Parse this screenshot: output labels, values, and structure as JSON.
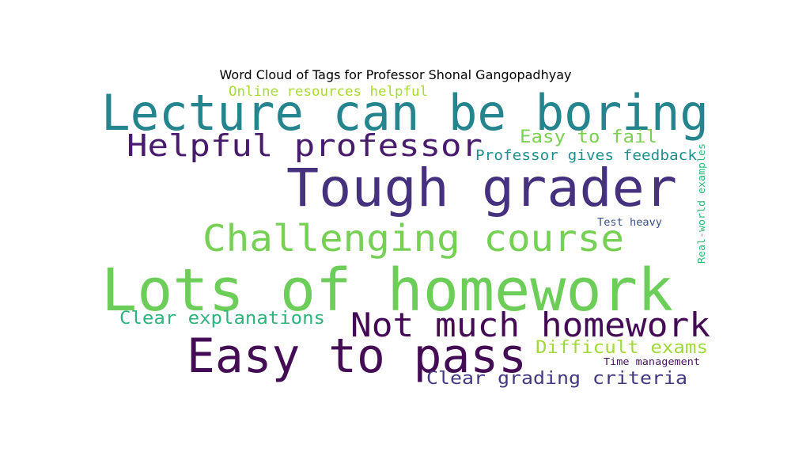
{
  "chart_data": {
    "type": "wordcloud",
    "title": "Word Cloud of Tags for Professor Shonal Gangopadhyay",
    "background": "#ffffff",
    "words": [
      {
        "text": "Lots of homework",
        "color": "#6ccd59"
      },
      {
        "text": "Tough grader",
        "color": "#46317e"
      },
      {
        "text": "Lecture can be boring",
        "color": "#25858e"
      },
      {
        "text": "Easy to pass",
        "color": "#440c55"
      },
      {
        "text": "Challenging course",
        "color": "#75d054"
      },
      {
        "text": "Not much homework",
        "color": "#440a55"
      },
      {
        "text": "Helpful professor",
        "color": "#481b6d"
      },
      {
        "text": "Clear explanations",
        "color": "#2eb37c"
      },
      {
        "text": "Clear grading criteria",
        "color": "#453882"
      },
      {
        "text": "Easy to fail",
        "color": "#7ad151"
      },
      {
        "text": "Difficult exams",
        "color": "#9fda3a"
      },
      {
        "text": "Professor gives feedback",
        "color": "#21908d"
      },
      {
        "text": "Online resources helpful",
        "color": "#a8db34"
      },
      {
        "text": "Real-world examples",
        "color": "#35b779"
      },
      {
        "text": "Test heavy",
        "color": "#3b528b"
      },
      {
        "text": "Time management",
        "color": "#471365"
      }
    ]
  }
}
